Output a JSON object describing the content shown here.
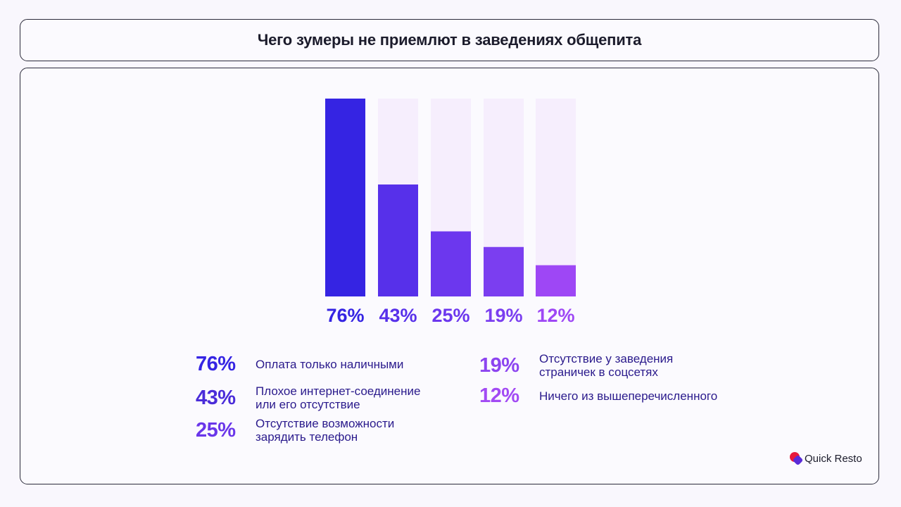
{
  "title": "Чего зумеры не приемлют в заведениях общепита",
  "chart_data": {
    "type": "bar",
    "categories": [
      "76%",
      "43%",
      "25%",
      "19%",
      "12%"
    ],
    "values": [
      76,
      43,
      25,
      19,
      12
    ],
    "value_labels": [
      "76%",
      "43%",
      "25%",
      "19%",
      "12%"
    ],
    "ylim": [
      0,
      76
    ],
    "colors": [
      "#3524e3",
      "#5730ea",
      "#6c37ee",
      "#7b3ef0",
      "#9e47f5"
    ],
    "track_color": "#f6eefd"
  },
  "legend": [
    {
      "pct": "76%",
      "text": "Оплата только наличными",
      "color": "#3524e3"
    },
    {
      "pct": "43%",
      "text": "Плохое интернет-соединение\nили его отсутствие",
      "color": "#4a2cd9"
    },
    {
      "pct": "25%",
      "text": "Отсутствие возможности\nзарядить телефон",
      "color": "#6a36ea"
    },
    {
      "pct": "19%",
      "text": "Отсутствие у заведения\nстраничек в соцсетях",
      "color": "#8c44f0"
    },
    {
      "pct": "12%",
      "text": "Ничего из вышеперечисленного",
      "color": "#a24af4"
    }
  ],
  "logo": {
    "text": "Quick Resto",
    "accent": "#e8193c",
    "accent2": "#5a2bd8"
  }
}
